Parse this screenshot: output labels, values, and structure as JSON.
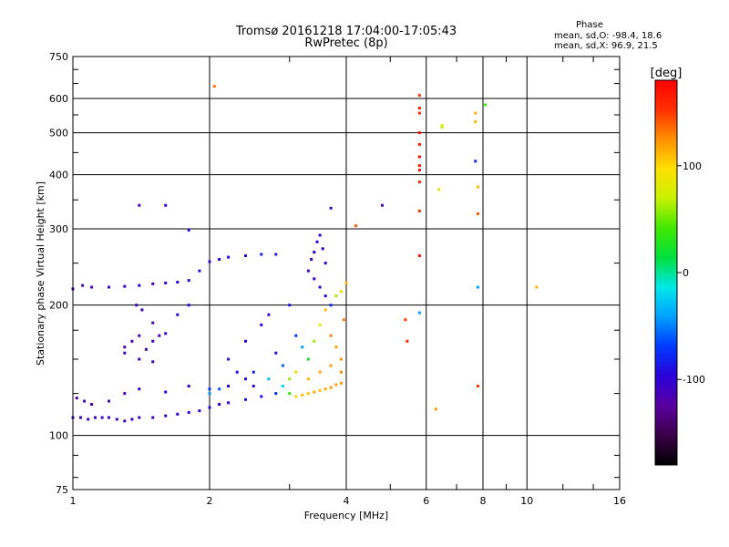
{
  "title": {
    "line1": "Tromsø 20161218 17:04:00-17:05:43",
    "line2": "RwPretec (8p)"
  },
  "phase_info": {
    "heading": "Phase",
    "row_o": "mean, sd,O: -98.4, 18.6",
    "row_x": "mean, sd,X:  96.9, 21.5"
  },
  "colorbar": {
    "unit": "[deg]",
    "ticks": [
      {
        "value": 100,
        "label": "100"
      },
      {
        "value": 0,
        "label": "0"
      },
      {
        "value": -100,
        "label": "-100"
      }
    ],
    "range": [
      -180,
      180
    ],
    "colors": [
      "#000000",
      "#3a0048",
      "#5a00a0",
      "#2a00d8",
      "#0038ff",
      "#00a0ff",
      "#00e8e8",
      "#00e040",
      "#40e800",
      "#c8f000",
      "#ffe000",
      "#ff9000",
      "#ff3000",
      "#ff0000"
    ]
  },
  "chart_data": {
    "type": "scatter",
    "title": "Tromsø 20161218 17:04:00-17:05:43",
    "subtitle": "RwPretec (8p)",
    "xlabel": "Frequency [MHz]",
    "ylabel": "Stationary phase Virtual Height [km]",
    "xscale": "log",
    "yscale": "log",
    "xlim": [
      1,
      16
    ],
    "ylim": [
      75,
      750
    ],
    "grid": true,
    "xticks": [
      {
        "value": 1,
        "label": "1"
      },
      {
        "value": 2,
        "label": "2"
      },
      {
        "value": 4,
        "label": "4"
      },
      {
        "value": 6,
        "label": "6"
      },
      {
        "value": 8,
        "label": "8"
      },
      {
        "value": 10,
        "label": "10"
      },
      {
        "value": 16,
        "label": "16"
      }
    ],
    "yticks": [
      {
        "value": 75,
        "label": "75"
      },
      {
        "value": 100,
        "label": "100"
      },
      {
        "value": 200,
        "label": "200"
      },
      {
        "value": 300,
        "label": "300"
      },
      {
        "value": 400,
        "label": "400"
      },
      {
        "value": 500,
        "label": "500"
      },
      {
        "value": 600,
        "label": "600"
      },
      {
        "value": 750,
        "label": "750"
      }
    ],
    "color_value": "phase [deg]",
    "points": [
      [
        1.0,
        110,
        -110
      ],
      [
        1.04,
        110,
        -110
      ],
      [
        1.08,
        109,
        -112
      ],
      [
        1.12,
        110,
        -108
      ],
      [
        1.16,
        110,
        -110
      ],
      [
        1.2,
        110,
        -105
      ],
      [
        1.25,
        109,
        -112
      ],
      [
        1.3,
        108,
        -115
      ],
      [
        1.35,
        109,
        -110
      ],
      [
        1.4,
        110,
        -108
      ],
      [
        1.5,
        110,
        -105
      ],
      [
        1.6,
        111,
        -105
      ],
      [
        1.7,
        112,
        -102
      ],
      [
        1.8,
        113,
        -100
      ],
      [
        1.9,
        114,
        -100
      ],
      [
        2.0,
        116,
        -95
      ],
      [
        2.1,
        118,
        -95
      ],
      [
        2.2,
        119,
        -92
      ],
      [
        2.4,
        121,
        -90
      ],
      [
        2.6,
        123,
        -88
      ],
      [
        2.8,
        125,
        -70
      ],
      [
        3.0,
        125,
        40
      ],
      [
        3.1,
        123,
        100
      ],
      [
        3.2,
        124,
        110
      ],
      [
        3.3,
        125,
        105
      ],
      [
        3.4,
        126,
        115
      ],
      [
        3.5,
        127,
        110
      ],
      [
        3.6,
        128,
        115
      ],
      [
        3.7,
        129,
        120
      ],
      [
        3.8,
        131,
        118
      ],
      [
        3.9,
        132,
        120
      ],
      [
        1.02,
        122,
        -120
      ],
      [
        1.06,
        120,
        -110
      ],
      [
        1.1,
        118,
        -115
      ],
      [
        1.2,
        120,
        -125
      ],
      [
        1.3,
        125,
        -110
      ],
      [
        1.4,
        128,
        -105
      ],
      [
        1.6,
        126,
        -100
      ],
      [
        1.8,
        130,
        -95
      ],
      [
        2.0,
        128,
        -70
      ],
      [
        2.2,
        130,
        -95
      ],
      [
        2.4,
        135,
        -90
      ],
      [
        1.0,
        218,
        -110
      ],
      [
        1.05,
        222,
        -115
      ],
      [
        1.1,
        220,
        -112
      ],
      [
        1.2,
        220,
        -105
      ],
      [
        1.3,
        221,
        -108
      ],
      [
        1.4,
        222,
        -100
      ],
      [
        1.5,
        224,
        -105
      ],
      [
        1.6,
        225,
        -100
      ],
      [
        1.7,
        226,
        -98
      ],
      [
        1.8,
        228,
        -96
      ],
      [
        1.9,
        240,
        -90
      ],
      [
        2.0,
        252,
        -92
      ],
      [
        2.1,
        255,
        -95
      ],
      [
        2.2,
        258,
        -90
      ],
      [
        2.4,
        260,
        -92
      ],
      [
        2.6,
        262,
        -88
      ],
      [
        2.8,
        262,
        -85
      ],
      [
        1.3,
        160,
        -115
      ],
      [
        1.35,
        165,
        -118
      ],
      [
        1.4,
        170,
        -112
      ],
      [
        1.45,
        158,
        -120
      ],
      [
        1.5,
        165,
        -115
      ],
      [
        1.55,
        170,
        -110
      ],
      [
        1.38,
        200,
        -112
      ],
      [
        1.42,
        195,
        -115
      ],
      [
        1.5,
        182,
        -118
      ],
      [
        1.3,
        155,
        -110
      ],
      [
        1.4,
        150,
        -115
      ],
      [
        1.5,
        148,
        -112
      ],
      [
        1.6,
        172,
        -105
      ],
      [
        1.7,
        190,
        -100
      ],
      [
        1.8,
        200,
        -95
      ],
      [
        2.2,
        150,
        -90
      ],
      [
        2.4,
        165,
        -100
      ],
      [
        2.5,
        140,
        -80
      ],
      [
        2.6,
        180,
        -95
      ],
      [
        2.7,
        190,
        -100
      ],
      [
        2.8,
        155,
        -90
      ],
      [
        2.9,
        145,
        -60
      ],
      [
        3.0,
        200,
        -85
      ],
      [
        3.1,
        170,
        -70
      ],
      [
        3.2,
        160,
        -40
      ],
      [
        3.3,
        150,
        20
      ],
      [
        3.4,
        165,
        60
      ],
      [
        3.5,
        180,
        80
      ],
      [
        3.6,
        195,
        110
      ],
      [
        3.7,
        170,
        130
      ],
      [
        3.8,
        160,
        120
      ],
      [
        3.9,
        150,
        125
      ],
      [
        3.95,
        185,
        130
      ],
      [
        3.3,
        240,
        -110
      ],
      [
        3.35,
        255,
        -105
      ],
      [
        3.4,
        265,
        -100
      ],
      [
        3.45,
        280,
        -95
      ],
      [
        3.5,
        290,
        -100
      ],
      [
        3.55,
        270,
        -102
      ],
      [
        3.6,
        250,
        -98
      ],
      [
        3.4,
        230,
        -105
      ],
      [
        3.5,
        220,
        -100
      ],
      [
        3.6,
        210,
        -95
      ],
      [
        3.7,
        200,
        -80
      ],
      [
        3.8,
        210,
        60
      ],
      [
        3.9,
        215,
        100
      ],
      [
        4.0,
        225,
        110
      ],
      [
        2.0,
        125,
        -45
      ],
      [
        2.1,
        128,
        -60
      ],
      [
        2.3,
        140,
        -88
      ],
      [
        2.5,
        130,
        -90
      ],
      [
        2.7,
        135,
        -30
      ],
      [
        2.9,
        130,
        -20
      ],
      [
        3.0,
        135,
        60
      ],
      [
        3.1,
        140,
        100
      ],
      [
        3.3,
        135,
        110
      ],
      [
        3.5,
        140,
        118
      ],
      [
        3.7,
        145,
        120
      ],
      [
        3.9,
        140,
        125
      ],
      [
        2.05,
        640,
        135
      ],
      [
        4.2,
        305,
        140
      ],
      [
        4.8,
        340,
        -120
      ],
      [
        5.4,
        185,
        150
      ],
      [
        5.45,
        165,
        160
      ],
      [
        5.8,
        610,
        150
      ],
      [
        5.8,
        570,
        165
      ],
      [
        5.8,
        555,
        160
      ],
      [
        5.8,
        500,
        170
      ],
      [
        5.8,
        470,
        165
      ],
      [
        5.8,
        440,
        175
      ],
      [
        5.8,
        420,
        170
      ],
      [
        5.8,
        410,
        165
      ],
      [
        5.8,
        385,
        160
      ],
      [
        5.8,
        330,
        155
      ],
      [
        5.8,
        260,
        170
      ],
      [
        5.8,
        192,
        -40
      ],
      [
        6.3,
        115,
        120
      ],
      [
        6.4,
        370,
        80
      ],
      [
        6.5,
        520,
        80
      ],
      [
        6.5,
        515,
        70
      ],
      [
        7.7,
        530,
        110
      ],
      [
        7.7,
        555,
        115
      ],
      [
        7.7,
        430,
        -80
      ],
      [
        7.8,
        375,
        110
      ],
      [
        7.8,
        220,
        -40
      ],
      [
        7.8,
        325,
        140
      ],
      [
        7.8,
        130,
        150
      ],
      [
        8.1,
        580,
        40
      ],
      [
        10.5,
        220,
        115
      ],
      [
        1.4,
        340,
        -115
      ],
      [
        1.6,
        340,
        -105
      ],
      [
        1.8,
        298,
        -95
      ],
      [
        3.7,
        335,
        -110
      ]
    ]
  }
}
